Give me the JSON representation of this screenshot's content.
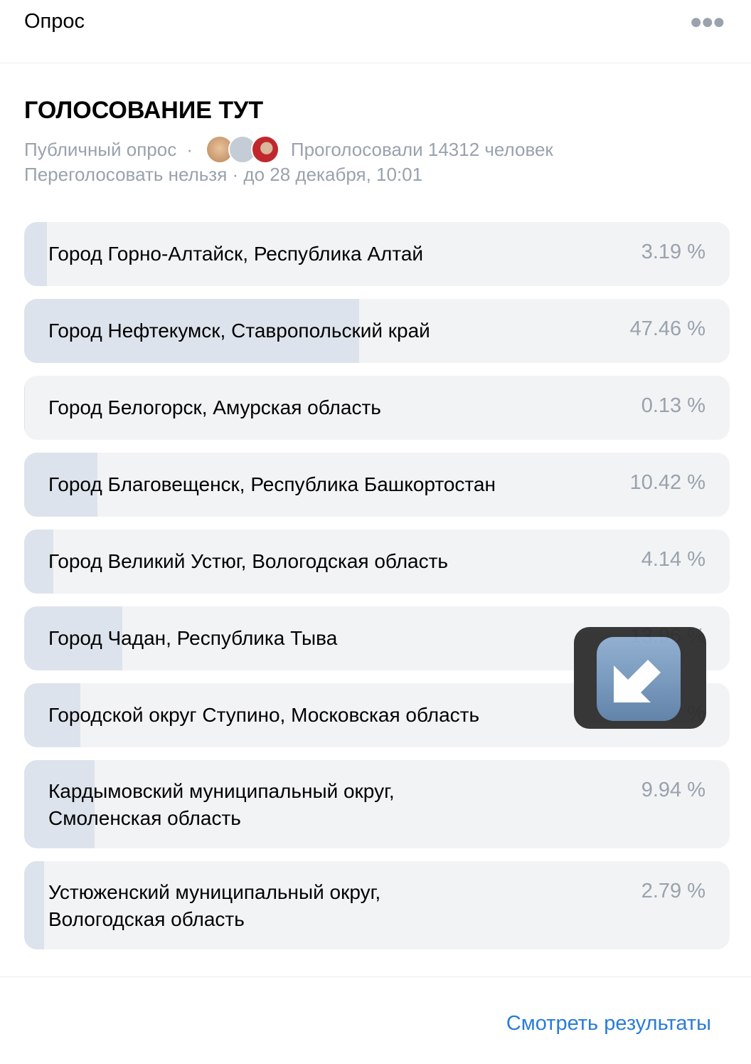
{
  "header": {
    "title": "Опрос",
    "more_icon": "more-horizontal-icon"
  },
  "poll": {
    "title": "ГОЛОСОВАНИЕ ТУТ",
    "type": "Публичный опрос",
    "separator": "·",
    "voters": "Проголосовали 14312 человек",
    "revote": "Переголосовать нельзя · до 28 декабря, 10:01",
    "options": [
      {
        "label": "Город Горно-Алтайск, Республика Алтай",
        "pct": "3.19 %",
        "value": 3.19
      },
      {
        "label": "Город Нефтекумск, Ставропольский край",
        "pct": "47.46 %",
        "value": 47.46
      },
      {
        "label": "Город Белогорск, Амурская область",
        "pct": "0.13 %",
        "value": 0.13
      },
      {
        "label": "Город Благовещенск, Республика Башкортостан",
        "pct": "10.42 %",
        "value": 10.42
      },
      {
        "label": "Город Великий Устюг, Вологодская область",
        "pct": "4.14 %",
        "value": 4.14
      },
      {
        "label": "Город Чадан, Республика Тыва",
        "pct": "13.96 %",
        "value": 13.96
      },
      {
        "label": "Городской округ Ступино, Московская область",
        "pct": "%",
        "value": 7.97
      },
      {
        "label": "Кардымовский муниципальный округ,\nСмоленская область",
        "pct": "9.94 %",
        "value": 9.94
      },
      {
        "label": "Устюженский муниципальный округ,\nВологодская область",
        "pct": "2.79 %",
        "value": 2.79
      }
    ]
  },
  "footer": {
    "results_link": "Смотреть результаты"
  },
  "colors": {
    "fill": "#dde3ec",
    "track": "#f2f3f5",
    "link": "#2a7cd6",
    "muted": "#99a2ad"
  }
}
